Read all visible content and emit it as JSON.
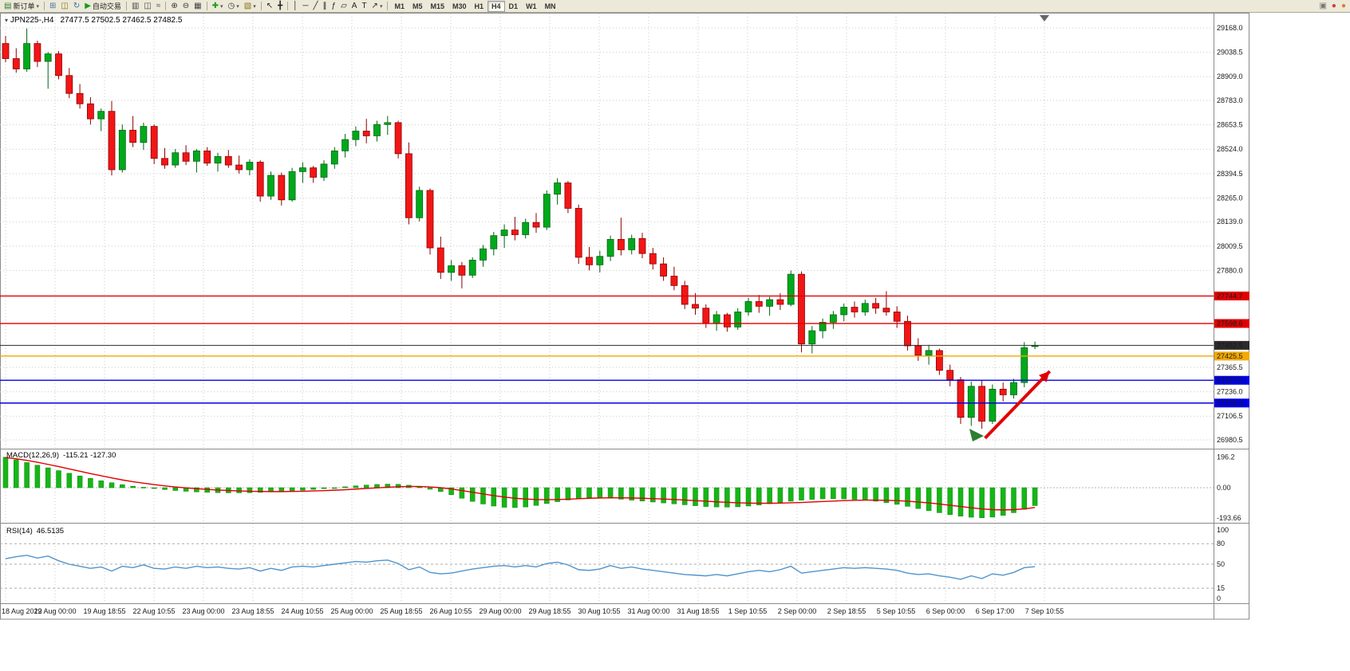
{
  "app": {
    "toolbar": {
      "buttons": [
        {
          "name": "new-order",
          "icon": "▤",
          "color": "#2e7d32",
          "label": "新订单",
          "caret": true
        },
        {
          "sep": true
        },
        {
          "name": "chart-windows",
          "icon": "⊞",
          "color": "#4a6fa5"
        },
        {
          "name": "profiles",
          "icon": "◫",
          "color": "#8a6d1a"
        },
        {
          "name": "refresh",
          "icon": "↻",
          "color": "#2e6da4"
        },
        {
          "name": "auto-trading",
          "icon": "▶",
          "color": "#1a9a1a",
          "label": "自动交易"
        },
        {
          "sep": true
        },
        {
          "name": "bar-chart",
          "icon": "▥",
          "color": "#444"
        },
        {
          "name": "candlestick-chart",
          "icon": "◫",
          "color": "#444"
        },
        {
          "name": "line-chart",
          "icon": "≈",
          "color": "#444"
        },
        {
          "sep": true
        },
        {
          "name": "zoom-in",
          "icon": "⊕",
          "color": "#333"
        },
        {
          "name": "zoom-out",
          "icon": "⊖",
          "color": "#333"
        },
        {
          "name": "tile-windows",
          "icon": "▦",
          "color": "#444"
        },
        {
          "sep": true
        },
        {
          "name": "indicators",
          "icon": "✚",
          "color": "#1a9a1a",
          "caret": true
        },
        {
          "name": "periods",
          "icon": "◷",
          "color": "#333",
          "caret": true
        },
        {
          "name": "templates",
          "icon": "▧",
          "color": "#8a6d1a",
          "caret": true
        },
        {
          "sep": true
        },
        {
          "name": "cursor",
          "icon": "↖",
          "color": "#222"
        },
        {
          "name": "crosshair",
          "icon": "╋",
          "color": "#222"
        },
        {
          "sep": true
        },
        {
          "name": "vertical-line",
          "icon": "│",
          "color": "#222"
        },
        {
          "name": "horizontal-line",
          "icon": "─",
          "color": "#222"
        },
        {
          "name": "trendline",
          "icon": "╱",
          "color": "#222"
        },
        {
          "name": "equidistant-channel",
          "icon": "∥",
          "color": "#222"
        },
        {
          "name": "fibonacci",
          "icon": "ƒ",
          "color": "#222"
        },
        {
          "name": "shapes",
          "icon": "▱",
          "color": "#222"
        },
        {
          "name": "text",
          "icon": "A",
          "color": "#222"
        },
        {
          "name": "text-label",
          "icon": "T",
          "color": "#222"
        },
        {
          "name": "arrows",
          "icon": "↗",
          "color": "#222",
          "caret": true
        },
        {
          "sep": true
        },
        {
          "name": "timeframe-m1",
          "label": "M1",
          "tf": true
        },
        {
          "name": "timeframe-m5",
          "label": "M5",
          "tf": true
        },
        {
          "name": "timeframe-m15",
          "label": "M15",
          "tf": true
        },
        {
          "name": "timeframe-m30",
          "label": "M30",
          "tf": true
        },
        {
          "name": "timeframe-h1",
          "label": "H1",
          "tf": true
        },
        {
          "name": "timeframe-h4",
          "label": "H4",
          "tf": true,
          "active": true
        },
        {
          "name": "timeframe-d1",
          "label": "D1",
          "tf": true
        },
        {
          "name": "timeframe-w1",
          "label": "W1",
          "tf": true
        },
        {
          "name": "timeframe-mn",
          "label": "MN",
          "tf": true
        }
      ],
      "right_buttons": [
        {
          "name": "window-layout",
          "icon": "▣",
          "color": "#777"
        },
        {
          "name": "status-red",
          "icon": "●",
          "color": "#d43c3c"
        },
        {
          "name": "status-orange",
          "icon": "●",
          "color": "#e8762c"
        }
      ]
    }
  },
  "icons": {
    "caret": "▾",
    "title_marker": "▾"
  },
  "chart": {
    "symbol_period": "JPN225-,H4",
    "ohlc_text": "27477.5 27502.5 27462.5 27482.5"
  },
  "chart_data": {
    "type": "candlestick",
    "title": "JPN225- H4",
    "ylim": [
      26960,
      29190
    ],
    "x_range": [
      "18 Aug 2022",
      "7 Sep 2022"
    ],
    "price_axis_ticks": [
      "29168.0",
      "29038.5",
      "28909.0",
      "28783.0",
      "28653.5",
      "28524.0",
      "28394.5",
      "28265.0",
      "28139.0",
      "28009.5",
      "27880.0",
      "27365.5",
      "27236.0",
      "27106.5",
      "26980.5"
    ],
    "levels": [
      {
        "label": "27744.7",
        "price": 27744.7,
        "color": "#e00000",
        "width": 1.4
      },
      {
        "label": "27598.6",
        "price": 27598.6,
        "color": "#e00000",
        "width": 1.4
      },
      {
        "label": "27482.5",
        "price": 27482.5,
        "color": "#2b2b2b",
        "width": 1.1
      },
      {
        "label": "27425.5",
        "price": 27425.5,
        "color": "#f2a900",
        "width": 1.4
      },
      {
        "label": "27297.0",
        "price": 27297.0,
        "color": "#0000e0",
        "width": 1.4
      },
      {
        "label": "27176.3",
        "price": 27176.3,
        "color": "#0000e0",
        "width": 1.4
      }
    ],
    "time_labels": [
      "18 Aug 2022",
      "19 Aug 00:00",
      "19 Aug 18:55",
      "22 Aug 10:55",
      "23 Aug 00:00",
      "23 Aug 18:55",
      "24 Aug 10:55",
      "25 Aug 00:00",
      "25 Aug 18:55",
      "26 Aug 10:55",
      "29 Aug 00:00",
      "29 Aug 18:55",
      "30 Aug 10:55",
      "31 Aug 00:00",
      "31 Aug 18:55",
      "1 Sep 10:55",
      "2 Sep 00:00",
      "2 Sep 18:55",
      "5 Sep 10:55",
      "6 Sep 00:00",
      "6 Sep 17:00",
      "7 Sep 10:55"
    ],
    "candles": [
      [
        29085,
        29125,
        28985,
        29005
      ],
      [
        29005,
        29060,
        28930,
        28950
      ],
      [
        28950,
        29165,
        28935,
        29085
      ],
      [
        29085,
        29100,
        28960,
        28990
      ],
      [
        28990,
        29040,
        28845,
        29030
      ],
      [
        29030,
        29045,
        28895,
        28915
      ],
      [
        28915,
        28955,
        28795,
        28820
      ],
      [
        28820,
        28870,
        28740,
        28765
      ],
      [
        28765,
        28800,
        28655,
        28685
      ],
      [
        28685,
        28740,
        28620,
        28725
      ],
      [
        28725,
        28780,
        28385,
        28415
      ],
      [
        28415,
        28655,
        28400,
        28625
      ],
      [
        28625,
        28700,
        28535,
        28560
      ],
      [
        28560,
        28665,
        28520,
        28645
      ],
      [
        28645,
        28655,
        28445,
        28475
      ],
      [
        28475,
        28530,
        28420,
        28440
      ],
      [
        28440,
        28525,
        28425,
        28505
      ],
      [
        28505,
        28545,
        28440,
        28460
      ],
      [
        28460,
        28525,
        28400,
        28515
      ],
      [
        28515,
        28535,
        28435,
        28450
      ],
      [
        28450,
        28505,
        28405,
        28485
      ],
      [
        28485,
        28520,
        28425,
        28440
      ],
      [
        28440,
        28490,
        28395,
        28415
      ],
      [
        28415,
        28470,
        28385,
        28455
      ],
      [
        28455,
        28465,
        28245,
        28275
      ],
      [
        28275,
        28405,
        28255,
        28385
      ],
      [
        28385,
        28400,
        28225,
        28255
      ],
      [
        28255,
        28425,
        28245,
        28405
      ],
      [
        28405,
        28455,
        28345,
        28425
      ],
      [
        28425,
        28435,
        28345,
        28375
      ],
      [
        28375,
        28465,
        28355,
        28445
      ],
      [
        28445,
        28535,
        28420,
        28515
      ],
      [
        28515,
        28605,
        28480,
        28575
      ],
      [
        28575,
        28645,
        28540,
        28620
      ],
      [
        28620,
        28685,
        28555,
        28595
      ],
      [
        28595,
        28675,
        28565,
        28655
      ],
      [
        28655,
        28700,
        28600,
        28665
      ],
      [
        28665,
        28675,
        28475,
        28500
      ],
      [
        28500,
        28560,
        28125,
        28160
      ],
      [
        28160,
        28325,
        28140,
        28305
      ],
      [
        28305,
        28315,
        27965,
        28000
      ],
      [
        28000,
        28060,
        27835,
        27870
      ],
      [
        27870,
        27935,
        27825,
        27905
      ],
      [
        27905,
        27925,
        27785,
        27855
      ],
      [
        27855,
        27950,
        27840,
        27935
      ],
      [
        27935,
        28015,
        27900,
        27995
      ],
      [
        27995,
        28085,
        27960,
        28065
      ],
      [
        28065,
        28125,
        28000,
        28095
      ],
      [
        28095,
        28165,
        28040,
        28070
      ],
      [
        28070,
        28155,
        28050,
        28135
      ],
      [
        28135,
        28185,
        28080,
        28110
      ],
      [
        28110,
        28305,
        28095,
        28285
      ],
      [
        28285,
        28370,
        28230,
        28345
      ],
      [
        28345,
        28355,
        28185,
        28210
      ],
      [
        28210,
        28230,
        27915,
        27950
      ],
      [
        27950,
        28005,
        27880,
        27910
      ],
      [
        27910,
        27985,
        27870,
        27955
      ],
      [
        27955,
        28065,
        27930,
        28045
      ],
      [
        28045,
        28160,
        27960,
        27990
      ],
      [
        27990,
        28070,
        27965,
        28050
      ],
      [
        28050,
        28080,
        27945,
        27970
      ],
      [
        27970,
        28000,
        27885,
        27915
      ],
      [
        27915,
        27950,
        27825,
        27850
      ],
      [
        27850,
        27900,
        27775,
        27800
      ],
      [
        27800,
        27825,
        27675,
        27700
      ],
      [
        27700,
        27760,
        27645,
        27680
      ],
      [
        27680,
        27700,
        27575,
        27600
      ],
      [
        27600,
        27665,
        27560,
        27645
      ],
      [
        27645,
        27655,
        27555,
        27580
      ],
      [
        27580,
        27680,
        27565,
        27660
      ],
      [
        27660,
        27735,
        27640,
        27715
      ],
      [
        27715,
        27750,
        27655,
        27690
      ],
      [
        27690,
        27740,
        27640,
        27725
      ],
      [
        27725,
        27760,
        27670,
        27700
      ],
      [
        27700,
        27880,
        27690,
        27860
      ],
      [
        27860,
        27875,
        27445,
        27490
      ],
      [
        27490,
        27585,
        27440,
        27560
      ],
      [
        27560,
        27625,
        27520,
        27605
      ],
      [
        27605,
        27665,
        27570,
        27645
      ],
      [
        27645,
        27705,
        27610,
        27685
      ],
      [
        27685,
        27715,
        27630,
        27660
      ],
      [
        27660,
        27725,
        27640,
        27705
      ],
      [
        27705,
        27735,
        27650,
        27680
      ],
      [
        27680,
        27770,
        27640,
        27660
      ],
      [
        27660,
        27690,
        27575,
        27610
      ],
      [
        27610,
        27640,
        27455,
        27480
      ],
      [
        27480,
        27520,
        27400,
        27430
      ],
      [
        27430,
        27485,
        27380,
        27455
      ],
      [
        27455,
        27465,
        27325,
        27350
      ],
      [
        27350,
        27380,
        27265,
        27300
      ],
      [
        27300,
        27315,
        27065,
        27100
      ],
      [
        27100,
        27290,
        27055,
        27265
      ],
      [
        27265,
        27300,
        27040,
        27080
      ],
      [
        27080,
        27275,
        27065,
        27250
      ],
      [
        27250,
        27285,
        27185,
        27220
      ],
      [
        27220,
        27305,
        27200,
        27285
      ],
      [
        27285,
        27500,
        27260,
        27470
      ],
      [
        27477.5,
        27502.5,
        27462.5,
        27482.5
      ]
    ],
    "macd": {
      "name": "MACD(12,26,9)",
      "values_text": "-115.21 -127.30",
      "scale": [
        "196.2",
        "0.00",
        "-193.66"
      ],
      "histogram": [
        196,
        180,
        162,
        145,
        128,
        110,
        93,
        76,
        60,
        45,
        32,
        20,
        10,
        3,
        -5,
        -12,
        -18,
        -23,
        -27,
        -30,
        -32,
        -33,
        -33,
        -32,
        -30,
        -27,
        -24,
        -20,
        -16,
        -11,
        -6,
        0,
        6,
        12,
        17,
        21,
        23,
        22,
        16,
        5,
        -10,
        -25,
        -45,
        -68,
        -88,
        -105,
        -118,
        -126,
        -128,
        -124,
        -114,
        -102,
        -90,
        -79,
        -70,
        -65,
        -64,
        -68,
        -74,
        -80,
        -86,
        -92,
        -98,
        -104,
        -110,
        -116,
        -121,
        -124,
        -125,
        -123,
        -118,
        -111,
        -103,
        -95,
        -87,
        -80,
        -75,
        -72,
        -71,
        -72,
        -75,
        -80,
        -87,
        -96,
        -107,
        -120,
        -134,
        -148,
        -161,
        -173,
        -183,
        -190,
        -193.66,
        -189,
        -178,
        -161,
        -139,
        -115.21
      ],
      "signal": [
        193,
        186,
        176,
        164,
        150,
        136,
        121,
        106,
        91,
        77,
        63,
        50,
        39,
        29,
        20,
        12,
        5,
        -1,
        -6,
        -11,
        -15,
        -18,
        -21,
        -23,
        -24,
        -25,
        -25,
        -24,
        -23,
        -21,
        -19,
        -16,
        -13,
        -9,
        -5,
        -1,
        3,
        6,
        8,
        8,
        5,
        0,
        -8,
        -18,
        -29,
        -40,
        -51,
        -60,
        -68,
        -73,
        -76,
        -77,
        -76,
        -74,
        -71,
        -68,
        -66,
        -65,
        -65,
        -66,
        -68,
        -70,
        -73,
        -76,
        -79,
        -83,
        -87,
        -91,
        -94,
        -97,
        -99,
        -100,
        -100,
        -99,
        -97,
        -95,
        -92,
        -89,
        -86,
        -83,
        -81,
        -80,
        -80,
        -81,
        -83,
        -87,
        -92,
        -98,
        -105,
        -113,
        -121,
        -129,
        -136,
        -141,
        -143,
        -141,
        -136,
        -127.3
      ]
    },
    "rsi": {
      "name": "RSI(14)",
      "value_text": "46.5135",
      "scale": [
        "100",
        "80",
        "50",
        "15",
        "0"
      ],
      "levels": [
        80,
        50,
        15
      ],
      "values": [
        58,
        61,
        63,
        59,
        62,
        55,
        50,
        47,
        44,
        46,
        40,
        47,
        45,
        49,
        44,
        43,
        46,
        44,
        47,
        45,
        46,
        44,
        43,
        45,
        40,
        44,
        41,
        46,
        47,
        46,
        48,
        50,
        52,
        54,
        53,
        55,
        56,
        51,
        42,
        46,
        38,
        36,
        37,
        40,
        43,
        45,
        47,
        48,
        46,
        48,
        46,
        51,
        53,
        49,
        42,
        41,
        43,
        48,
        44,
        46,
        43,
        41,
        39,
        37,
        35,
        34,
        33,
        35,
        33,
        36,
        39,
        41,
        39,
        42,
        47,
        37,
        39,
        41,
        43,
        45,
        44,
        45,
        44,
        43,
        41,
        37,
        35,
        36,
        33,
        31,
        28,
        33,
        29,
        36,
        34,
        38,
        45,
        46.5
      ]
    },
    "objects": {
      "trend_arrow": {
        "from": {
          "index": 92.3,
          "price": 26990
        },
        "to": {
          "index": 98.4,
          "price": 27345
        },
        "color": "#e00000"
      },
      "marker": {
        "index": 91.5,
        "price": 27010,
        "color": "#2e7d32"
      }
    }
  }
}
